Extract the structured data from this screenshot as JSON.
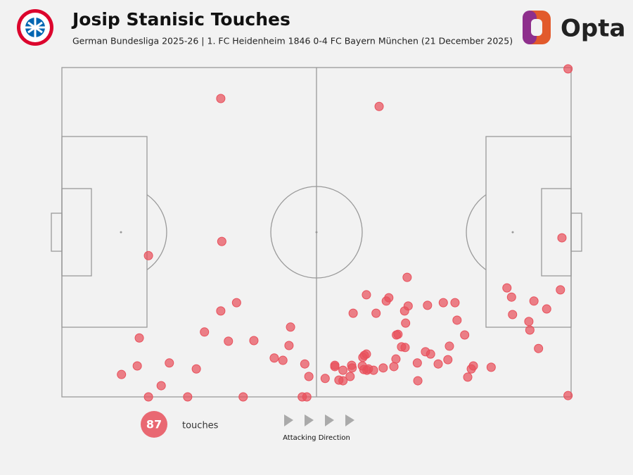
{
  "chart_data": {
    "type": "scatter",
    "title": "Josip Stanisic Touches",
    "subtitle": "German Bundesliga 2025-26 | 1. FC Heidenheim 1846 0-4 FC Bayern München (21 December 2025)",
    "brand": "Opta",
    "count": 87,
    "count_label": "touches",
    "direction_label": "Attacking Direction",
    "color": "#e8505c",
    "xlim": [
      0,
      100
    ],
    "ylim": [
      0,
      100
    ],
    "x": [
      99.4,
      31.2,
      62.3,
      98.2,
      31.4,
      17.0,
      67.8,
      87.4,
      97.9,
      59.8,
      64.2,
      88.3,
      63.7,
      34.3,
      74.9,
      77.2,
      92.7,
      68.0,
      71.8,
      95.2,
      31.2,
      67.3,
      57.2,
      61.7,
      88.5,
      77.6,
      91.7,
      67.5,
      44.9,
      91.9,
      28.0,
      66.0,
      65.7,
      79.1,
      15.2,
      32.7,
      37.7,
      44.6,
      66.7,
      76.1,
      67.4,
      93.6,
      71.4,
      72.4,
      59.8,
      59.4,
      59.1,
      41.7,
      65.6,
      43.4,
      75.8,
      69.8,
      73.9,
      21.1,
      47.7,
      14.8,
      53.6,
      56.9,
      80.8,
      84.3,
      57.0,
      59.3,
      53.6,
      60.2,
      63.1,
      65.2,
      80.4,
      26.4,
      59.9,
      55.2,
      61.2,
      11.7,
      48.5,
      56.6,
      51.7,
      54.4,
      55.2,
      79.7,
      69.9,
      19.5,
      17.0,
      24.7,
      35.6,
      47.2,
      48.1,
      99.4,
      59.0
    ],
    "y": [
      99.6,
      90.6,
      88.2,
      48.3,
      47.2,
      42.9,
      36.3,
      33.1,
      32.5,
      31.0,
      30.1,
      30.3,
      29.1,
      28.6,
      28.6,
      28.6,
      29.1,
      27.6,
      27.8,
      26.7,
      26.1,
      26.1,
      25.4,
      25.4,
      25.0,
      23.3,
      22.9,
      22.4,
      21.2,
      20.3,
      19.7,
      19.0,
      18.8,
      18.8,
      17.9,
      16.9,
      17.1,
      15.6,
      15.2,
      15.4,
      15.0,
      14.7,
      13.7,
      13.0,
      13.0,
      12.6,
      12.0,
      11.8,
      11.5,
      11.1,
      11.3,
      10.3,
      10.0,
      10.3,
      10.0,
      9.4,
      9.6,
      9.6,
      9.4,
      9.0,
      8.8,
      8.3,
      9.2,
      8.5,
      8.8,
      9.2,
      8.5,
      8.5,
      8.1,
      8.1,
      8.1,
      6.8,
      6.2,
      6.2,
      5.6,
      5.1,
      4.9,
      6.0,
      4.9,
      3.4,
      0,
      0,
      0,
      0,
      0,
      0.4,
      9.4
    ]
  }
}
